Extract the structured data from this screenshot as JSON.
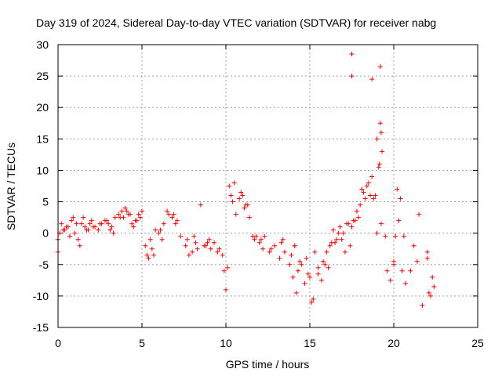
{
  "chart_data": {
    "type": "scatter",
    "title": "Day 319 of 2024, Sidereal Day-to-day VTEC variation (SDTVAR) for receiver nabg",
    "xlabel": "GPS time / hours",
    "ylabel": "SDTVAR / TECUs",
    "xlim": [
      0,
      25
    ],
    "ylim": [
      -15,
      30
    ],
    "x_ticks": [
      "0",
      "5",
      "10",
      "15",
      "20",
      "25"
    ],
    "y_ticks": [
      "-15",
      "-10",
      "-5",
      "0",
      "5",
      "10",
      "15",
      "20",
      "25",
      "30"
    ],
    "grid": true,
    "marker": "+",
    "color": "#ff0000",
    "series": [
      {
        "name": "SDTVAR",
        "x": [
          0.0,
          0.2,
          0.4,
          0.6,
          0.8,
          1.0,
          1.2,
          1.4,
          1.6,
          1.8,
          2.0,
          2.2,
          2.4,
          2.6,
          2.8,
          3.0,
          3.2,
          3.4,
          3.6,
          3.8,
          4.0,
          4.2,
          4.4,
          4.6,
          4.8,
          5.0,
          5.2,
          5.4,
          5.6,
          5.8,
          6.0,
          6.2,
          6.5,
          6.8,
          7.0,
          7.3,
          7.6,
          7.8,
          8.0,
          8.2,
          8.5,
          8.8,
          9.0,
          9.3,
          9.6,
          9.8,
          10.0,
          10.2,
          10.4,
          10.6,
          10.8,
          11.0,
          11.2,
          11.4,
          11.6,
          11.8,
          12.0,
          12.3,
          12.6,
          12.9,
          13.2,
          13.5,
          13.8,
          14.0,
          14.2,
          14.5,
          14.8,
          15.0,
          15.2,
          15.5,
          15.8,
          16.0,
          16.2,
          16.4,
          16.6,
          16.8,
          17.0,
          17.2,
          17.4,
          17.6,
          17.8,
          18.0,
          18.2,
          18.4,
          18.6,
          18.8,
          19.0,
          19.2,
          19.5,
          19.8,
          20.0,
          20.2,
          20.4,
          20.6,
          21.0,
          21.5,
          22.0,
          22.2,
          22.4,
          0.1,
          0.5,
          0.9,
          1.3,
          1.7,
          2.1,
          2.5,
          2.9,
          3.3,
          3.7,
          4.1,
          4.5,
          4.9,
          5.3,
          5.7,
          6.1,
          6.6,
          7.1,
          7.7,
          8.3,
          8.9,
          9.5,
          10.1,
          10.5,
          10.9,
          11.3,
          11.7,
          12.1,
          12.7,
          13.3,
          13.9,
          14.3,
          14.7,
          15.1,
          15.5,
          15.9,
          16.3,
          16.7,
          17.1,
          17.5,
          17.9,
          18.3,
          18.7,
          19.1,
          19.3,
          19.6,
          20.1,
          20.3,
          21.7,
          22.1,
          0.0,
          0.3,
          0.7,
          1.1,
          1.5,
          1.9,
          3.1,
          3.9,
          4.3,
          4.7,
          5.5,
          6.3,
          6.9,
          8.1,
          8.7,
          9.1,
          9.9,
          10.3,
          11.1,
          12.2,
          13.4,
          14.1,
          14.4,
          14.9,
          15.3,
          15.7,
          16.1,
          16.5,
          16.9,
          17.3,
          17.7,
          18.1,
          18.5,
          18.9,
          19.0,
          19.15,
          19.25,
          20.0,
          20.5,
          21.2,
          22.3,
          17.5,
          17.5,
          18.7,
          19.2,
          19.25,
          22.0,
          21.4,
          20.7,
          14.1
        ],
        "y": [
          -3.0,
          1.5,
          0.5,
          1.0,
          2.0,
          0.0,
          -1.0,
          1.5,
          1.0,
          0.5,
          2.0,
          1.0,
          0.5,
          1.5,
          2.0,
          1.5,
          1.0,
          2.5,
          3.0,
          3.5,
          4.0,
          3.0,
          1.5,
          2.0,
          3.0,
          3.5,
          -2.0,
          -4.0,
          -2.5,
          0.5,
          0.0,
          -1.0,
          3.5,
          2.5,
          1.5,
          -0.5,
          -2.0,
          -3.5,
          -3.0,
          -1.5,
          4.5,
          -2.0,
          -1.0,
          -1.5,
          -2.5,
          -3.5,
          -9.0,
          7.5,
          5.0,
          3.0,
          5.5,
          6.0,
          4.5,
          2.5,
          -0.5,
          -0.5,
          -1.5,
          -0.5,
          -3.0,
          -2.0,
          -4.0,
          -3.0,
          -5.0,
          -7.0,
          -9.5,
          -5.0,
          -4.0,
          -7.0,
          -10.5,
          -6.5,
          -4.5,
          -3.0,
          -2.0,
          0.5,
          -1.0,
          1.0,
          0.0,
          1.5,
          -2.0,
          2.0,
          3.5,
          4.5,
          6.5,
          7.5,
          6.0,
          5.5,
          0.0,
          17.5,
          -0.5,
          -7.5,
          -5.0,
          7.0,
          5.5,
          -0.5,
          -6.0,
          3.0,
          -4.0,
          -10.0,
          -8.5,
          0.0,
          1.0,
          2.5,
          -2.0,
          0.5,
          1.0,
          1.5,
          2.0,
          0.0,
          2.5,
          3.5,
          1.0,
          2.5,
          -3.5,
          -3.5,
          0.5,
          3.0,
          2.0,
          -1.0,
          -2.5,
          -1.5,
          -3.0,
          -5.5,
          8.0,
          6.5,
          4.5,
          -1.0,
          -1.0,
          -2.5,
          -1.5,
          -3.5,
          -6.0,
          -8.0,
          -11.0,
          -5.5,
          -5.0,
          -1.5,
          0.0,
          -3.0,
          1.0,
          2.5,
          5.5,
          9.0,
          10.5,
          13.0,
          -6.0,
          -0.5,
          2.0,
          -11.5,
          -9.5,
          -1.0,
          0.5,
          -0.5,
          1.5,
          2.5,
          1.5,
          0.5,
          2.5,
          3.0,
          2.0,
          -1.0,
          1.5,
          3.0,
          -0.5,
          -2.0,
          -2.5,
          -6.0,
          6.0,
          4.0,
          -2.5,
          -1.0,
          -2.0,
          -4.5,
          -6.5,
          -3.0,
          -7.5,
          -5.5,
          -1.5,
          -1.0,
          1.5,
          2.0,
          7.0,
          8.0,
          6.0,
          15.0,
          11.0,
          1.5,
          -4.5,
          -6.0,
          -2.0,
          -7.0,
          28.5,
          25.0,
          24.5,
          26.5,
          16.0,
          -3.0,
          -4.5,
          -8.0,
          -2.0
        ]
      }
    ]
  }
}
